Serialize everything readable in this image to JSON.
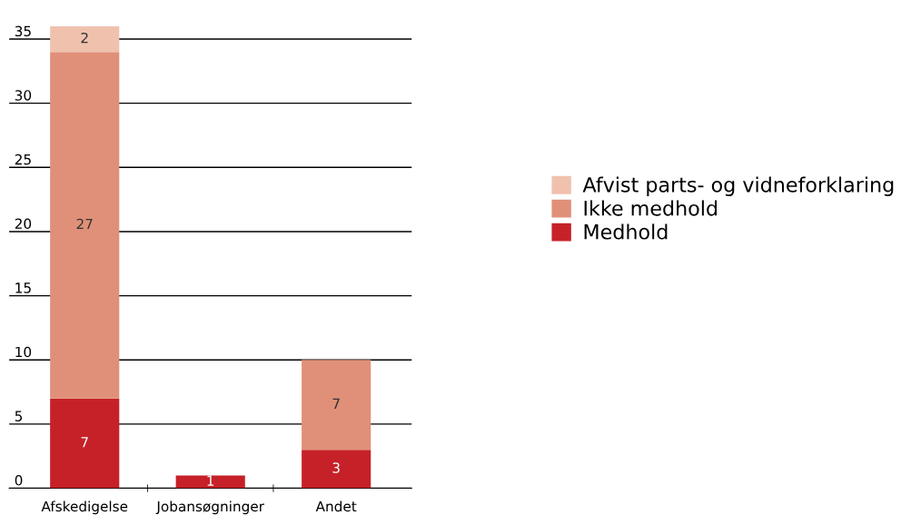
{
  "chart_data": {
    "type": "bar",
    "stacked": true,
    "categories": [
      "Afskedigelse",
      "Jobansøgninger",
      "Andet"
    ],
    "series": [
      {
        "name": "Medhold",
        "color": "#c62128",
        "values": [
          7,
          1,
          3
        ]
      },
      {
        "name": "Ikke medhold",
        "color": "#e09078",
        "values": [
          27,
          null,
          7
        ]
      },
      {
        "name": "Afvist parts- og vidneforklaring",
        "color": "#f0c2ae",
        "values": [
          2,
          null,
          null
        ]
      }
    ],
    "ylim": [
      0,
      36
    ],
    "yticks": [
      0,
      5,
      10,
      15,
      20,
      25,
      30,
      35
    ],
    "grid": "y",
    "legend": "right",
    "data_labels": true
  }
}
